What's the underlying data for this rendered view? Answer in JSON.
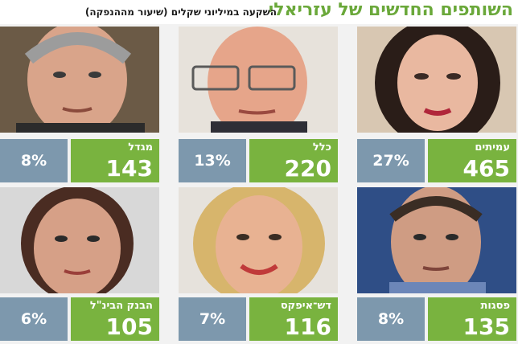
{
  "header": {
    "title": "השותפים החדשים של עזריאלי",
    "subtitle": "השקעה במיליוני שקלים (שיעור מההנפקה)"
  },
  "partners": [
    {
      "name": "עמיתים",
      "amount": "465",
      "percent": "27%"
    },
    {
      "name": "כלל",
      "amount": "220",
      "percent": "13%"
    },
    {
      "name": "מגדל",
      "amount": "143",
      "percent": "8%"
    },
    {
      "name": "פסגות",
      "amount": "135",
      "percent": "8%"
    },
    {
      "name": "דש־איפקס",
      "amount": "116",
      "percent": "7%"
    },
    {
      "name": "הבנק הבינ\"ל",
      "amount": "105",
      "percent": "6%"
    }
  ],
  "colors": {
    "title_green": "#6aa83a",
    "value_green": "#79b33f",
    "percent_blue_gray": "#7d98ad"
  }
}
